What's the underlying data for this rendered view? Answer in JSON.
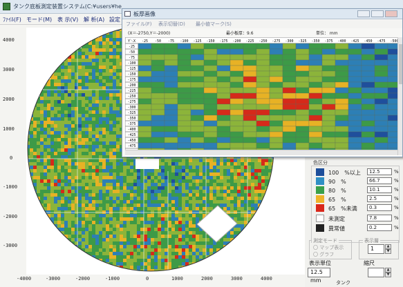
{
  "main_window": {
    "title": "タンク底板測定装置システム(C:¥users¥he",
    "menu": [
      "ﾌｧｲﾙ(F)",
      "モード(M)",
      "表 示(V)",
      "解 析(A)",
      "設定"
    ]
  },
  "map": {
    "y_axis_labels": [
      "4000",
      "3000",
      "2000",
      "1000",
      "0",
      "-1000",
      "-2000",
      "-3000"
    ],
    "x_axis_labels": [
      "-4000",
      "-3000",
      "-2000",
      "-1000",
      "0",
      "1000",
      "2000",
      "3000",
      "4000"
    ]
  },
  "grid_window": {
    "title": "板厚画像",
    "menu": [
      "ファイル(F)",
      "表示切替(D)",
      "最小値マーク(S)"
    ],
    "info_coords": "(X＝-2750,Y＝-2000)",
    "info_min": "最小板厚：9.6",
    "info_unit": "単位： mm",
    "header_corner": "Y＼X",
    "x_headers": [
      "-25",
      "-50",
      "-75",
      "-100",
      "-125",
      "-150",
      "-175",
      "-200",
      "-225",
      "-250",
      "-275",
      "-300",
      "-325",
      "-350",
      "-375",
      "-400",
      "-425",
      "-450",
      "-475",
      "-500"
    ],
    "y_headers": [
      "-25",
      "-50",
      "-75",
      "-100",
      "-125",
      "-150",
      "-175",
      "-200",
      "-225",
      "-250",
      "-275",
      "-300",
      "-325",
      "-350",
      "-375",
      "-400",
      "-425",
      "-450",
      "-475",
      "-500"
    ]
  },
  "legend": {
    "title": "色区分",
    "rows": [
      {
        "label": "100　%以上",
        "value": "12.5",
        "unit": "%",
        "color": "#1d4e9a"
      },
      {
        "label": "90　%",
        "value": "66.7",
        "unit": "%",
        "color": "#2f8fc4"
      },
      {
        "label": "80　%",
        "value": "10.1",
        "unit": "%",
        "color": "#3aa04a"
      },
      {
        "label": "65　%",
        "value": "2.5",
        "unit": "%",
        "color": "#eeb42a"
      },
      {
        "label": "65　%未満",
        "value": "0.3",
        "unit": "%",
        "color": "#d9281b"
      },
      {
        "label": "未測定",
        "value": "7.8",
        "unit": "%",
        "color": "#ffffff"
      },
      {
        "label": "異常値",
        "value": "0.2",
        "unit": "%",
        "color": "#222222"
      }
    ]
  },
  "controls": {
    "mode_group_label": "測定モード",
    "radio_1": "〇 マップ表示",
    "radio_2": "〇 グラフ",
    "layer_group_label": "表示層",
    "layer_value": "1",
    "display_unit_label": "表示単位",
    "display_unit_value": "12.5 mm",
    "scale_label": "縮尺",
    "scale_value": "",
    "tank_label": "タンク"
  }
}
